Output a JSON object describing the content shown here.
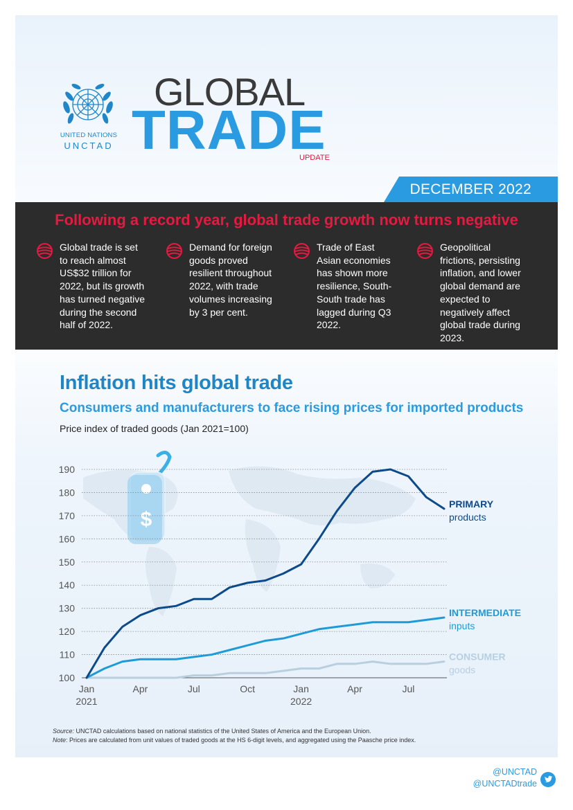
{
  "org": {
    "name": "UNITED NATIONS",
    "sub": "UNCTAD"
  },
  "title": {
    "word1": "GLOBAL",
    "word2": "TRADE",
    "tag": "UPDATE"
  },
  "date": "DECEMBER 2022",
  "headline": "Following a record year, global trade growth now turns negative",
  "key_points": [
    {
      "text": "Global trade is set to reach almost US$32 trillion for 2022, but its growth has turned negative during the second half of 2022."
    },
    {
      "text": "Demand for foreign goods proved resilient throughout 2022, with trade volumes increasing by 3 per cent."
    },
    {
      "text": "Trade of East Asian economies has shown more resilience, South-South trade has lagged during Q3 2022."
    },
    {
      "text": "Geopolitical frictions, persisting inflation, and lower global demand are expected to negatively affect global trade during 2023."
    }
  ],
  "section": {
    "title": "Inflation hits global trade",
    "subtitle": "Consumers and manufacturers to face rising prices for imported products",
    "chart_label": "Price index of traded goods (Jan 2021=100)"
  },
  "chart_data": {
    "type": "line",
    "title": "Price index of traded goods (Jan 2021=100)",
    "ylim": [
      100,
      190
    ],
    "yticks": [
      100,
      110,
      120,
      130,
      140,
      150,
      160,
      170,
      180,
      190
    ],
    "x_months": [
      "Jan 2021",
      "Feb 2021",
      "Mar 2021",
      "Apr 2021",
      "May 2021",
      "Jun 2021",
      "Jul 2021",
      "Aug 2021",
      "Sep 2021",
      "Oct 2021",
      "Nov 2021",
      "Dec 2021",
      "Jan 2022",
      "Feb 2022",
      "Mar 2022",
      "Apr 2022",
      "May 2022",
      "Jun 2022",
      "Jul 2022",
      "Aug 2022",
      "Sep 2022"
    ],
    "xtick_labels": [
      {
        "month_index": 0,
        "line1": "Jan",
        "line2": "2021"
      },
      {
        "month_index": 3,
        "line1": "Apr",
        "line2": ""
      },
      {
        "month_index": 6,
        "line1": "Jul",
        "line2": ""
      },
      {
        "month_index": 9,
        "line1": "Oct",
        "line2": ""
      },
      {
        "month_index": 12,
        "line1": "Jan",
        "line2": "2022"
      },
      {
        "month_index": 15,
        "line1": "Apr",
        "line2": ""
      },
      {
        "month_index": 18,
        "line1": "Jul",
        "line2": ""
      }
    ],
    "series": [
      {
        "name": "PRIMARY",
        "sub": "products",
        "color": "#0c4a8a",
        "values": [
          100,
          113,
          122,
          127,
          130,
          131,
          134,
          134,
          139,
          141,
          142,
          145,
          149,
          160,
          172,
          182,
          189,
          190,
          187,
          178,
          173
        ]
      },
      {
        "name": "INTERMEDIATE",
        "sub": "inputs",
        "color": "#1e9bd7",
        "values": [
          100,
          104,
          107,
          108,
          108,
          108,
          109,
          110,
          112,
          114,
          116,
          117,
          119,
          121,
          122,
          123,
          124,
          124,
          124,
          125,
          126
        ]
      },
      {
        "name": "CONSUMER",
        "sub": "goods",
        "color": "#b8cfe0",
        "values": [
          100,
          100,
          100,
          100,
          100,
          100,
          101,
          101,
          102,
          102,
          102,
          103,
          104,
          104,
          106,
          106,
          107,
          106,
          106,
          106,
          107
        ]
      }
    ]
  },
  "source": {
    "label": "Source:",
    "text": " UNCTAD calculations based on national statistics of the United States of America and the European Union."
  },
  "note": {
    "label": "Note",
    "text": ": Prices are calculated from unit values of traded goods at the HS 6-digit levels, and aggregated using the Paasche price index."
  },
  "twitter": [
    "@UNCTAD",
    "@UNCTADtrade"
  ],
  "colors": {
    "accent": "#2a9be0",
    "red": "#e51a40",
    "dark": "#2c2c2c"
  }
}
